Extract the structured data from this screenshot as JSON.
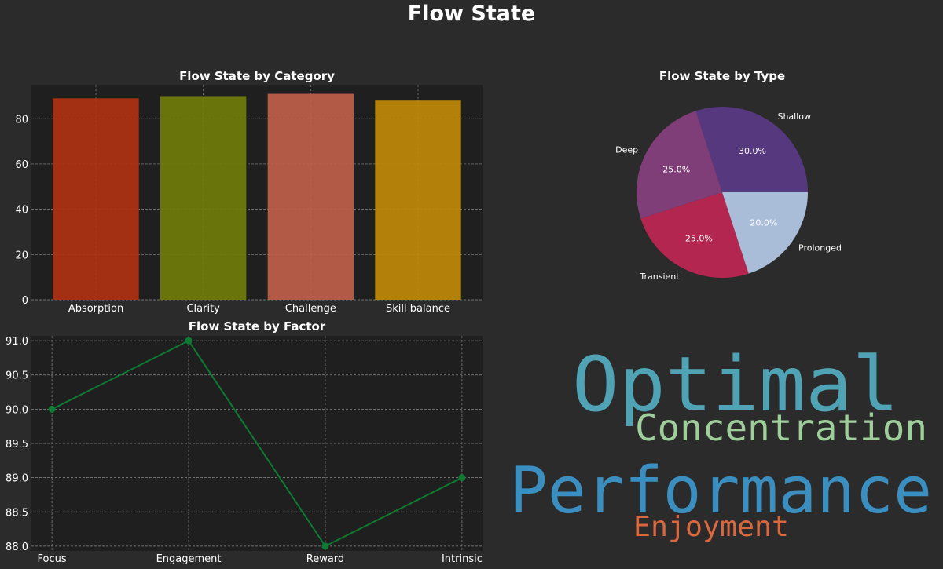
{
  "title": "Flow State",
  "chart_data": [
    {
      "type": "bar",
      "title": "Flow State by Category",
      "categories": [
        "Absorption",
        "Clarity",
        "Challenge",
        "Skill balance"
      ],
      "values": [
        89,
        90,
        91,
        88
      ],
      "colors": [
        "#b03214",
        "#707d0a",
        "#bf5f4a",
        "#c08a08"
      ],
      "ylim": [
        0,
        95
      ],
      "yticks": [
        0,
        20,
        40,
        60,
        80
      ],
      "grid": true
    },
    {
      "type": "pie",
      "title": "Flow State by Type",
      "labels": [
        "Shallow",
        "Deep",
        "Transient",
        "Prolonged"
      ],
      "values": [
        30,
        25,
        25,
        20
      ],
      "pct_labels": [
        "30.0%",
        "25.0%",
        "25.0%",
        "20.0%"
      ],
      "colors": [
        "#56387f",
        "#7f3e77",
        "#b3264f",
        "#a9bcd8"
      ]
    },
    {
      "type": "line",
      "title": "Flow State by Factor",
      "categories": [
        "Focus",
        "Engagement",
        "Reward",
        "Intrinsic"
      ],
      "values": [
        90,
        91,
        88,
        89
      ],
      "color": "#0e7a32",
      "ylim": [
        87.93,
        91.07
      ],
      "yticks": [
        "88.0",
        "88.5",
        "89.0",
        "89.5",
        "90.0",
        "90.5",
        "91.0"
      ],
      "grid": true
    }
  ],
  "word_cloud": {
    "words": [
      {
        "text": "Optimal",
        "color": "#4fa3b4"
      },
      {
        "text": "Concentration",
        "color": "#9ecf9b"
      },
      {
        "text": "Performance",
        "color": "#3a8fc0"
      },
      {
        "text": "Enjoyment",
        "color": "#d9683f"
      }
    ]
  }
}
